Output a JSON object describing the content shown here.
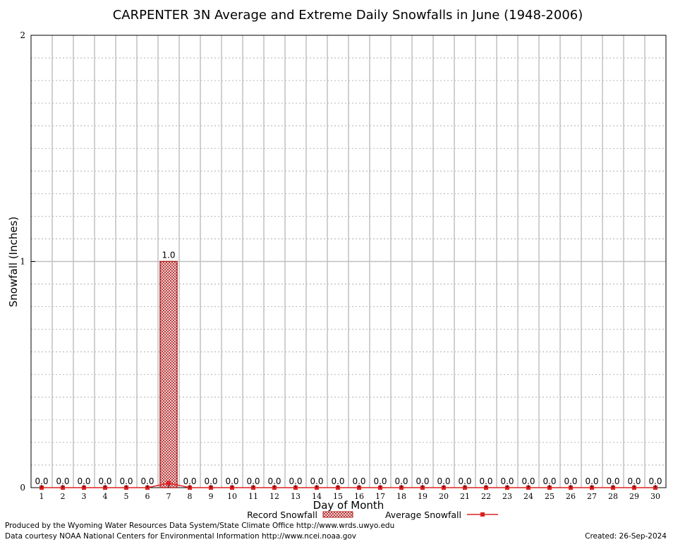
{
  "chart_data": {
    "type": "bar",
    "title": "CARPENTER 3N Average and Extreme Daily Snowfalls in June (1948-2006)",
    "xlabel": "Day of Month",
    "ylabel": "Snowfall (Inches)",
    "ylim": [
      0,
      2
    ],
    "yticks": [
      "0",
      "1",
      "2"
    ],
    "grid": true,
    "categories": [
      "1",
      "2",
      "3",
      "4",
      "5",
      "6",
      "7",
      "8",
      "9",
      "10",
      "11",
      "12",
      "13",
      "14",
      "15",
      "16",
      "17",
      "18",
      "19",
      "20",
      "21",
      "22",
      "23",
      "24",
      "25",
      "26",
      "27",
      "28",
      "29",
      "30"
    ],
    "series": [
      {
        "name": "Record Snowfall",
        "kind": "bar",
        "values": [
          0,
          0,
          0,
          0,
          0,
          0,
          1.0,
          0,
          0,
          0,
          0,
          0,
          0,
          0,
          0,
          0,
          0,
          0,
          0,
          0,
          0,
          0,
          0,
          0,
          0,
          0,
          0,
          0,
          0,
          0
        ],
        "labels": [
          "0.0",
          "0.0",
          "0.0",
          "0.0",
          "0.0",
          "0.0",
          "1.0",
          "0.0",
          "0.0",
          "0.0",
          "0.0",
          "0.0",
          "0.0",
          "0.0",
          "0.0",
          "0.0",
          "0.0",
          "0.0",
          "0.0",
          "0.0",
          "0.0",
          "0.0",
          "0.0",
          "0.0",
          "0.0",
          "0.0",
          "0.0",
          "0.0",
          "0.0",
          "0.0"
        ]
      },
      {
        "name": "Average Snowfall",
        "kind": "line",
        "values": [
          0,
          0,
          0,
          0,
          0,
          0,
          0.02,
          0,
          0,
          0,
          0,
          0,
          0,
          0,
          0,
          0,
          0,
          0,
          0,
          0,
          0,
          0,
          0,
          0,
          0,
          0,
          0,
          0,
          0,
          0
        ]
      }
    ],
    "legend_position": "bottom-center",
    "colors": {
      "record": "#b22222",
      "average": "#dd2020",
      "grid": "#c0c0c0"
    }
  },
  "footer": {
    "produced_by": "Produced by the Wyoming Water Resources Data System/State Climate Office http://www.wrds.uwyo.edu",
    "data_courtesy": "Data courtesy NOAA National Centers for Environmental Information http://www.ncei.noaa.gov",
    "created": "Created:  26-Sep-2024"
  }
}
